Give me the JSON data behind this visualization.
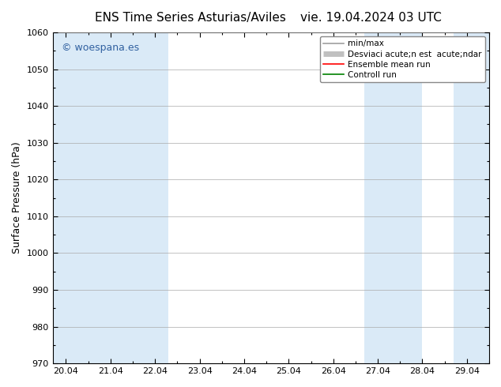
{
  "title_left": "ENS Time Series Asturias/Aviles",
  "title_right": "vie. 19.04.2024 03 UTC",
  "ylabel": "Surface Pressure (hPa)",
  "ylim": [
    970,
    1060
  ],
  "yticks": [
    970,
    980,
    990,
    1000,
    1010,
    1020,
    1030,
    1040,
    1050,
    1060
  ],
  "xtick_labels": [
    "20.04",
    "21.04",
    "22.04",
    "23.04",
    "24.04",
    "25.04",
    "26.04",
    "27.04",
    "28.04",
    "29.04"
  ],
  "xtick_positions": [
    0,
    1,
    2,
    3,
    4,
    5,
    6,
    7,
    8,
    9
  ],
  "xlim": [
    -0.3,
    9.5
  ],
  "background_color": "#ffffff",
  "plot_bg_color": "#ffffff",
  "shaded_bands": [
    {
      "x_start": -0.3,
      "x_end": 0.5
    },
    {
      "x_start": 0.5,
      "x_end": 2.3
    },
    {
      "x_start": 6.7,
      "x_end": 8.3
    },
    {
      "x_start": 8.7,
      "x_end": 9.5
    }
  ],
  "shade_color": "#daeaf7",
  "watermark": "© woespana.es",
  "watermark_color": "#3060a0",
  "legend_label_1": "min/max",
  "legend_label_2": "Desviaci acute;n est  acute;ndar",
  "legend_label_3": "Ensemble mean run",
  "legend_label_4": "Controll run",
  "legend_color_1": "#a0a0a0",
  "legend_color_2": "#c0c0c0",
  "legend_color_3": "#ff0000",
  "legend_color_4": "#008000",
  "grid_color": "#aaaaaa",
  "tick_color": "#000000",
  "spine_color": "#000000",
  "title_fontsize": 11,
  "label_fontsize": 9,
  "tick_fontsize": 8,
  "legend_fontsize": 7.5
}
